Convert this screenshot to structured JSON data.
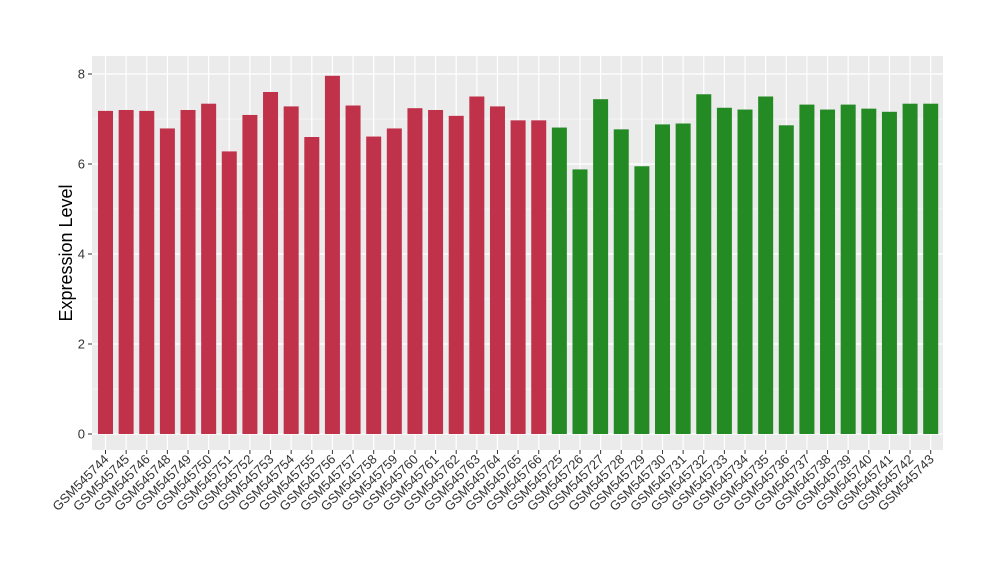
{
  "chart_data": {
    "type": "bar",
    "title": "",
    "xlabel": "",
    "ylabel": "Expression Level",
    "ylim": [
      0,
      8.4
    ],
    "y_ticks": [
      0,
      2,
      4,
      6,
      8
    ],
    "grid": true,
    "colors": {
      "group_a": "#C0314A",
      "group_b": "#248A24",
      "panel": "#EBEBEB",
      "grid": "#FFFFFF"
    },
    "categories": [
      "GSM545744",
      "GSM545745",
      "GSM545746",
      "GSM545748",
      "GSM545749",
      "GSM545750",
      "GSM545751",
      "GSM545752",
      "GSM545753",
      "GSM545754",
      "GSM545755",
      "GSM545756",
      "GSM545757",
      "GSM545758",
      "GSM545759",
      "GSM545760",
      "GSM545761",
      "GSM545762",
      "GSM545763",
      "GSM545764",
      "GSM545765",
      "GSM545766",
      "GSM545725",
      "GSM545726",
      "GSM545727",
      "GSM545728",
      "GSM545729",
      "GSM545730",
      "GSM545731",
      "GSM545732",
      "GSM545733",
      "GSM545734",
      "GSM545735",
      "GSM545736",
      "GSM545737",
      "GSM545738",
      "GSM545739",
      "GSM545740",
      "GSM545741",
      "GSM545742",
      "GSM545743"
    ],
    "values": [
      7.18,
      7.2,
      7.18,
      6.79,
      7.2,
      7.34,
      6.28,
      7.09,
      7.6,
      7.28,
      6.6,
      7.96,
      7.3,
      6.61,
      6.79,
      7.24,
      7.2,
      7.07,
      7.5,
      7.28,
      6.97,
      6.97,
      6.81,
      5.88,
      7.44,
      6.77,
      5.95,
      6.88,
      6.9,
      7.55,
      7.25,
      7.21,
      7.5,
      6.86,
      7.32,
      7.21,
      7.32,
      7.23,
      7.16,
      7.34,
      7.34
    ],
    "groups": [
      "a",
      "a",
      "a",
      "a",
      "a",
      "a",
      "a",
      "a",
      "a",
      "a",
      "a",
      "a",
      "a",
      "a",
      "a",
      "a",
      "a",
      "a",
      "a",
      "a",
      "a",
      "a",
      "b",
      "b",
      "b",
      "b",
      "b",
      "b",
      "b",
      "b",
      "b",
      "b",
      "b",
      "b",
      "b",
      "b",
      "b",
      "b",
      "b",
      "b",
      "b"
    ]
  }
}
